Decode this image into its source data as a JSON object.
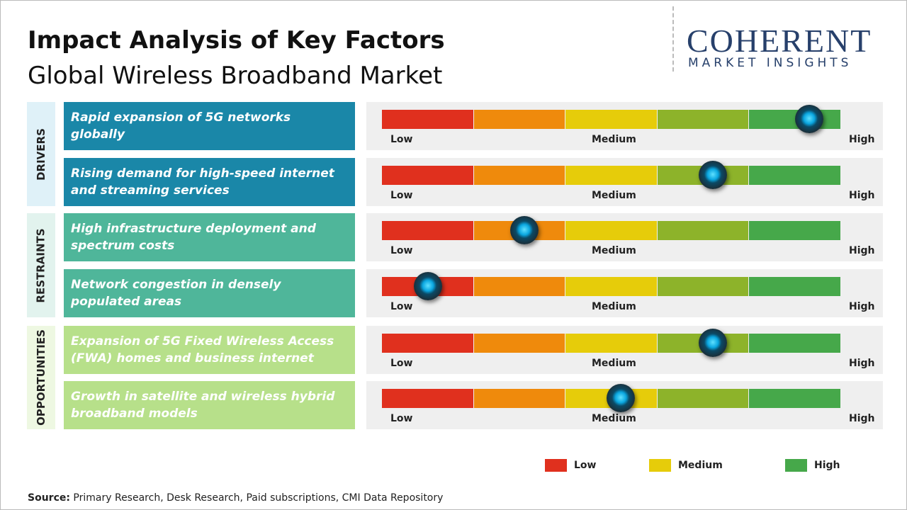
{
  "header": {
    "title": "Impact Analysis of Key Factors",
    "subtitle": "Global Wireless Broadband Market"
  },
  "logo": {
    "name": "COHERENT",
    "tagline": "MARKET INSIGHTS"
  },
  "scale_labels": [
    "Low",
    "Medium",
    "High"
  ],
  "segment_colors": [
    "#e0301e",
    "#ef8a0c",
    "#e6cc0a",
    "#8db32a",
    "#46a84a"
  ],
  "groups": [
    {
      "label": "DRIVERS",
      "label_bg": "#dff1f8",
      "color": "#1a87a8",
      "factors": [
        {
          "text": "Rapid expansion of 5G networks globally",
          "level": 93
        },
        {
          "text": "Rising demand for high-speed internet and streaming services",
          "level": 72
        }
      ]
    },
    {
      "label": "RESTRAINTS",
      "label_bg": "#e2f3ee",
      "color": "#4fb69a",
      "factors": [
        {
          "text": "High infrastructure deployment and spectrum costs",
          "level": 31
        },
        {
          "text": "Network congestion in densely populated areas",
          "level": 10
        }
      ]
    },
    {
      "label": "OPPORTUNITIES",
      "label_bg": "#eef8e2",
      "color": "#b7e08a",
      "factors": [
        {
          "text": "Expansion of 5G Fixed Wireless Access (FWA) homes and business internet",
          "level": 72
        },
        {
          "text": "Growth in satellite and wireless hybrid broadband models",
          "level": 52
        }
      ]
    }
  ],
  "legend": [
    {
      "label": "Low",
      "color": "#e0301e"
    },
    {
      "label": "Medium",
      "color": "#e6cc0a"
    },
    {
      "label": "High",
      "color": "#46a84a"
    }
  ],
  "source": {
    "label": "Source:",
    "text": "Primary Research, Desk Research, Paid subscriptions, CMI Data Repository"
  }
}
